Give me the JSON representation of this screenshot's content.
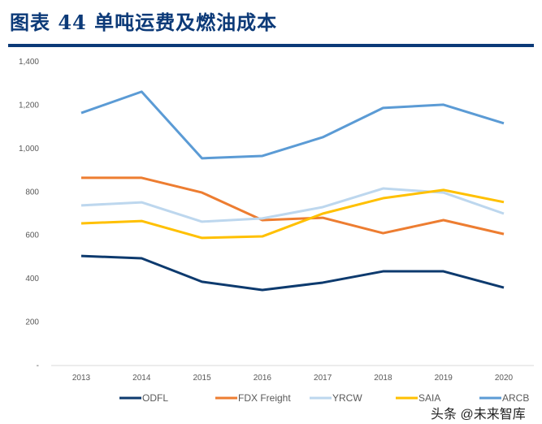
{
  "title": "图表 44 单吨运费及燃油成本",
  "watermark": "头条 @未来智库",
  "chart_data": {
    "type": "line",
    "title": "",
    "xlabel": "",
    "ylabel": "",
    "categories": [
      "2013",
      "2014",
      "2015",
      "2016",
      "2017",
      "2018",
      "2019",
      "2020"
    ],
    "ylim": [
      0,
      1400
    ],
    "yticks": [
      0,
      200,
      400,
      600,
      800,
      1000,
      1200,
      1400
    ],
    "ytick_labels": [
      "-",
      "200",
      "400",
      "600",
      "800",
      "1,000",
      "1,200",
      "1,400"
    ],
    "grid": false,
    "legend_position": "bottom",
    "series": [
      {
        "name": "ODFL",
        "color": "#0d3a6e",
        "values": [
          505,
          494,
          386,
          348,
          382,
          434,
          434,
          359
        ]
      },
      {
        "name": "FDX Freight",
        "color": "#ed7d31",
        "values": [
          865,
          865,
          797,
          670,
          681,
          610,
          670,
          606
        ]
      },
      {
        "name": "YRCW",
        "color": "#bdd7ee",
        "values": [
          738,
          752,
          663,
          678,
          730,
          816,
          797,
          700
        ]
      },
      {
        "name": "SAIA",
        "color": "#ffc000",
        "values": [
          655,
          666,
          588,
          595,
          700,
          771,
          809,
          753
        ]
      },
      {
        "name": "ARCB",
        "color": "#5b9bd5",
        "values": [
          1164,
          1262,
          955,
          966,
          1052,
          1187,
          1202,
          1116
        ]
      }
    ]
  }
}
